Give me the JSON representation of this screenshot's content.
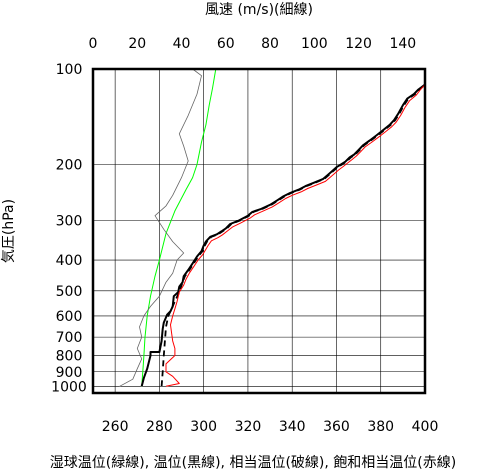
{
  "chart_data": {
    "type": "line",
    "top_axis_title": "風速 (m/s)(細線)",
    "bottom_axis_title": "湿球温位(緑線), 温位(黒線), 相当温位(破線), 飽和相当温位(赤線)",
    "left_axis_title": "気圧(hPa)",
    "y_scale": "log",
    "y_reversed": true,
    "ylim": [
      1050,
      100
    ],
    "y_ticks": [
      100,
      200,
      300,
      400,
      500,
      600,
      700,
      800,
      900,
      1000
    ],
    "y_tick_labels": [
      "100",
      "200",
      "300",
      "400",
      "500",
      "600",
      "700",
      "800",
      "900",
      "1000"
    ],
    "x_bottom_lim": [
      250,
      400
    ],
    "x_bottom_ticks": [
      260,
      280,
      300,
      320,
      340,
      360,
      380,
      400
    ],
    "x_bottom_tick_labels": [
      "260",
      "280",
      "300",
      "320",
      "340",
      "360",
      "380",
      "400"
    ],
    "x_top_lim": [
      0,
      150
    ],
    "x_top_ticks": [
      0,
      20,
      40,
      60,
      80,
      100,
      120,
      140
    ],
    "x_top_tick_labels": [
      "0",
      "20",
      "40",
      "60",
      "80",
      "100",
      "120",
      "140"
    ],
    "grid": true,
    "series": [
      {
        "axis": "bottom",
        "color": "#00ff00",
        "width": 1.0,
        "dash": false,
        "points": [
          [
            272,
            1000
          ],
          [
            272.5,
            900
          ],
          [
            273,
            800
          ],
          [
            273.5,
            700
          ],
          [
            274.5,
            600
          ],
          [
            276,
            520
          ],
          [
            278,
            450
          ],
          [
            280,
            400
          ],
          [
            283,
            330
          ],
          [
            287,
            280
          ],
          [
            292,
            240
          ],
          [
            295,
            220
          ],
          [
            297,
            200
          ],
          [
            299,
            170
          ],
          [
            301,
            150
          ],
          [
            302.5,
            130
          ],
          [
            304,
            115
          ],
          [
            305.5,
            100
          ]
        ]
      },
      {
        "axis": "bottom",
        "color": "#000000",
        "width": 2.0,
        "dash": false,
        "points": [
          [
            272,
            1000
          ],
          [
            273,
            940
          ],
          [
            274.5,
            880
          ],
          [
            276,
            800
          ],
          [
            276,
            780
          ],
          [
            280,
            780
          ],
          [
            281,
            720
          ],
          [
            281.5,
            660
          ],
          [
            282,
            630
          ],
          [
            283.5,
            595
          ],
          [
            285,
            580
          ],
          [
            286,
            560
          ],
          [
            286.5,
            520
          ],
          [
            288.5,
            505
          ],
          [
            289,
            485
          ],
          [
            290.5,
            470
          ],
          [
            291,
            450
          ],
          [
            293,
            430
          ],
          [
            295,
            410
          ],
          [
            297,
            390
          ],
          [
            299,
            375
          ],
          [
            300,
            360
          ],
          [
            301,
            350
          ],
          [
            303,
            338
          ],
          [
            306,
            332
          ],
          [
            308,
            325
          ],
          [
            310,
            318
          ],
          [
            312,
            308
          ],
          [
            316,
            300
          ],
          [
            320,
            290
          ],
          [
            322,
            282
          ],
          [
            326,
            276
          ],
          [
            330,
            268
          ],
          [
            333,
            260
          ],
          [
            336,
            252
          ],
          [
            339,
            246
          ],
          [
            343,
            240
          ],
          [
            346,
            234
          ],
          [
            350,
            228
          ],
          [
            354,
            222
          ],
          [
            356,
            216
          ],
          [
            358,
            210
          ],
          [
            360,
            204
          ],
          [
            362,
            200
          ],
          [
            364,
            196
          ],
          [
            366,
            190
          ],
          [
            368,
            186
          ],
          [
            370,
            180
          ],
          [
            372,
            174
          ],
          [
            375,
            168
          ],
          [
            378,
            162
          ],
          [
            381,
            156
          ],
          [
            384,
            150
          ],
          [
            386,
            145
          ],
          [
            388,
            138
          ],
          [
            390,
            130
          ],
          [
            392,
            124
          ],
          [
            395,
            120
          ],
          [
            397,
            116
          ],
          [
            400,
            112
          ]
        ]
      },
      {
        "axis": "bottom",
        "color": "#000000",
        "width": 1.8,
        "dash": true,
        "points": [
          [
            281,
            1000
          ],
          [
            281.5,
            900
          ],
          [
            282,
            800
          ],
          [
            282.5,
            720
          ],
          [
            283,
            650
          ],
          [
            284,
            600
          ],
          [
            285.5,
            570
          ],
          [
            287,
            540
          ],
          [
            289,
            505
          ],
          [
            290.5,
            470
          ],
          [
            291.5,
            450
          ],
          [
            293.5,
            430
          ],
          [
            295.5,
            410
          ],
          [
            297.5,
            390
          ],
          [
            299.5,
            375
          ],
          [
            300.5,
            360
          ],
          [
            301.5,
            350
          ],
          [
            303.5,
            338
          ],
          [
            306.5,
            332
          ],
          [
            308.5,
            325
          ],
          [
            310.5,
            318
          ],
          [
            312.5,
            308
          ],
          [
            316.5,
            300
          ],
          [
            320.5,
            290
          ],
          [
            322.5,
            282
          ],
          [
            326.5,
            276
          ],
          [
            330.5,
            268
          ],
          [
            333.5,
            260
          ],
          [
            336.5,
            252
          ],
          [
            339.5,
            246
          ],
          [
            343.5,
            240
          ],
          [
            346.5,
            234
          ],
          [
            350.5,
            228
          ],
          [
            354.5,
            222
          ],
          [
            356.5,
            216
          ],
          [
            358.5,
            210
          ],
          [
            360.5,
            204
          ],
          [
            362.5,
            200
          ],
          [
            364.5,
            196
          ],
          [
            366.5,
            190
          ],
          [
            368.5,
            186
          ],
          [
            370.5,
            180
          ],
          [
            372.5,
            174
          ],
          [
            375.5,
            168
          ],
          [
            378.5,
            162
          ],
          [
            381.5,
            156
          ],
          [
            384.5,
            150
          ],
          [
            386.5,
            145
          ],
          [
            388.5,
            138
          ],
          [
            390.5,
            130
          ],
          [
            392.5,
            124
          ],
          [
            395.5,
            120
          ],
          [
            397.5,
            116
          ],
          [
            400,
            112
          ]
        ]
      },
      {
        "axis": "bottom",
        "color": "#ff0000",
        "width": 1.0,
        "dash": false,
        "points": [
          [
            283,
            1000
          ],
          [
            289,
            980
          ],
          [
            286,
            930
          ],
          [
            283,
            900
          ],
          [
            283,
            850
          ],
          [
            287,
            800
          ],
          [
            287,
            760
          ],
          [
            286,
            720
          ],
          [
            285.5,
            680
          ],
          [
            285,
            640
          ],
          [
            286,
            600
          ],
          [
            287,
            570
          ],
          [
            288,
            540
          ],
          [
            289,
            505
          ],
          [
            291,
            480
          ],
          [
            292,
            460
          ],
          [
            293.5,
            440
          ],
          [
            295.5,
            420
          ],
          [
            297.5,
            400
          ],
          [
            299.5,
            385
          ],
          [
            301,
            370
          ],
          [
            302,
            360
          ],
          [
            303.5,
            348
          ],
          [
            306.5,
            340
          ],
          [
            308.5,
            333
          ],
          [
            310.5,
            325
          ],
          [
            313,
            315
          ],
          [
            317,
            305
          ],
          [
            321,
            295
          ],
          [
            323,
            288
          ],
          [
            327,
            280
          ],
          [
            331,
            272
          ],
          [
            334,
            264
          ],
          [
            337,
            256
          ],
          [
            340,
            250
          ],
          [
            344,
            244
          ],
          [
            347,
            238
          ],
          [
            351,
            232
          ],
          [
            355,
            226
          ],
          [
            357,
            220
          ],
          [
            359,
            214
          ],
          [
            361,
            208
          ],
          [
            363,
            203
          ],
          [
            365,
            198
          ],
          [
            367,
            193
          ],
          [
            369,
            188
          ],
          [
            371,
            182
          ],
          [
            373,
            176
          ],
          [
            376,
            170
          ],
          [
            379,
            164
          ],
          [
            382,
            158
          ],
          [
            385,
            152
          ],
          [
            387,
            147
          ],
          [
            389,
            140
          ],
          [
            391,
            132
          ],
          [
            393,
            126
          ],
          [
            396,
            121
          ],
          [
            398,
            116
          ],
          [
            400,
            112
          ]
        ]
      },
      {
        "axis": "top",
        "color": "#666666",
        "width": 0.8,
        "dash": false,
        "points": [
          [
            12,
            1000
          ],
          [
            18,
            950
          ],
          [
            20,
            880
          ],
          [
            22,
            820
          ],
          [
            20,
            760
          ],
          [
            22,
            700
          ],
          [
            21,
            650
          ],
          [
            23,
            600
          ],
          [
            26,
            560
          ],
          [
            30,
            520
          ],
          [
            33,
            470
          ],
          [
            36,
            440
          ],
          [
            38,
            400
          ],
          [
            41,
            380
          ],
          [
            36,
            350
          ],
          [
            32,
            320
          ],
          [
            28,
            290
          ],
          [
            33,
            270
          ],
          [
            36,
            250
          ],
          [
            40,
            220
          ],
          [
            43,
            195
          ],
          [
            41,
            175
          ],
          [
            39,
            160
          ],
          [
            43,
            140
          ],
          [
            47,
            120
          ],
          [
            49,
            105
          ],
          [
            45,
            100
          ]
        ]
      }
    ]
  }
}
